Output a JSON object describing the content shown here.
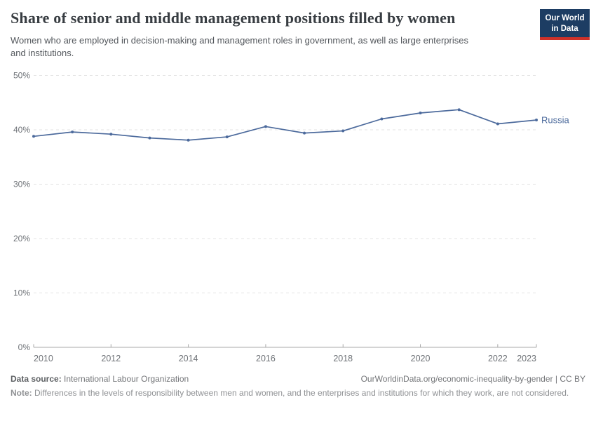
{
  "header": {
    "title": "Share of senior and middle management positions filled by women",
    "subtitle": "Women who are employed in decision-making and management roles in government, as well as large enterprises and institutions.",
    "logo": {
      "line1": "Our World",
      "line2": "in Data",
      "bg_color": "#1d3d63",
      "bar_color": "#cf3129"
    }
  },
  "chart_data": {
    "type": "line",
    "title": "Share of senior and middle management positions filled by women",
    "x": [
      2010,
      2011,
      2012,
      2013,
      2014,
      2015,
      2016,
      2017,
      2018,
      2019,
      2020,
      2021,
      2022,
      2023
    ],
    "series": [
      {
        "name": "Russia",
        "color": "#4c6a9c",
        "values": [
          38.8,
          39.6,
          39.2,
          38.5,
          38.1,
          38.7,
          40.6,
          39.4,
          39.8,
          42.0,
          43.1,
          43.7,
          41.1,
          41.8
        ]
      }
    ],
    "xlim": [
      2010,
      2023
    ],
    "ylim": [
      0,
      50
    ],
    "y_ticks": [
      {
        "value": 0,
        "label": "0%"
      },
      {
        "value": 10,
        "label": "10%"
      },
      {
        "value": 20,
        "label": "20%"
      },
      {
        "value": 30,
        "label": "30%"
      },
      {
        "value": 40,
        "label": "40%"
      },
      {
        "value": 50,
        "label": "50%"
      }
    ],
    "x_ticks": [
      {
        "value": 2010,
        "label": "2010"
      },
      {
        "value": 2012,
        "label": "2012"
      },
      {
        "value": 2014,
        "label": "2014"
      },
      {
        "value": 2016,
        "label": "2016"
      },
      {
        "value": 2018,
        "label": "2018"
      },
      {
        "value": 2020,
        "label": "2020"
      },
      {
        "value": 2022,
        "label": "2022"
      },
      {
        "value": 2023,
        "label": "2023"
      }
    ],
    "grid": "horizontal-dashed",
    "legend": "line-end-label",
    "colors": {
      "grid": "#e3e3e3",
      "axis": "#a8a8a8",
      "tick_text": "#6e7277"
    }
  },
  "footer": {
    "source_label": "Data source:",
    "source_value": "International Labour Organization",
    "url": "OurWorldinData.org/economic-inequality-by-gender",
    "separator": " | ",
    "license": "CC BY",
    "note_label": "Note:",
    "note_text": "Differences in the levels of responsibility between men and women, and the enterprises and institutions for which they work, are not considered."
  }
}
